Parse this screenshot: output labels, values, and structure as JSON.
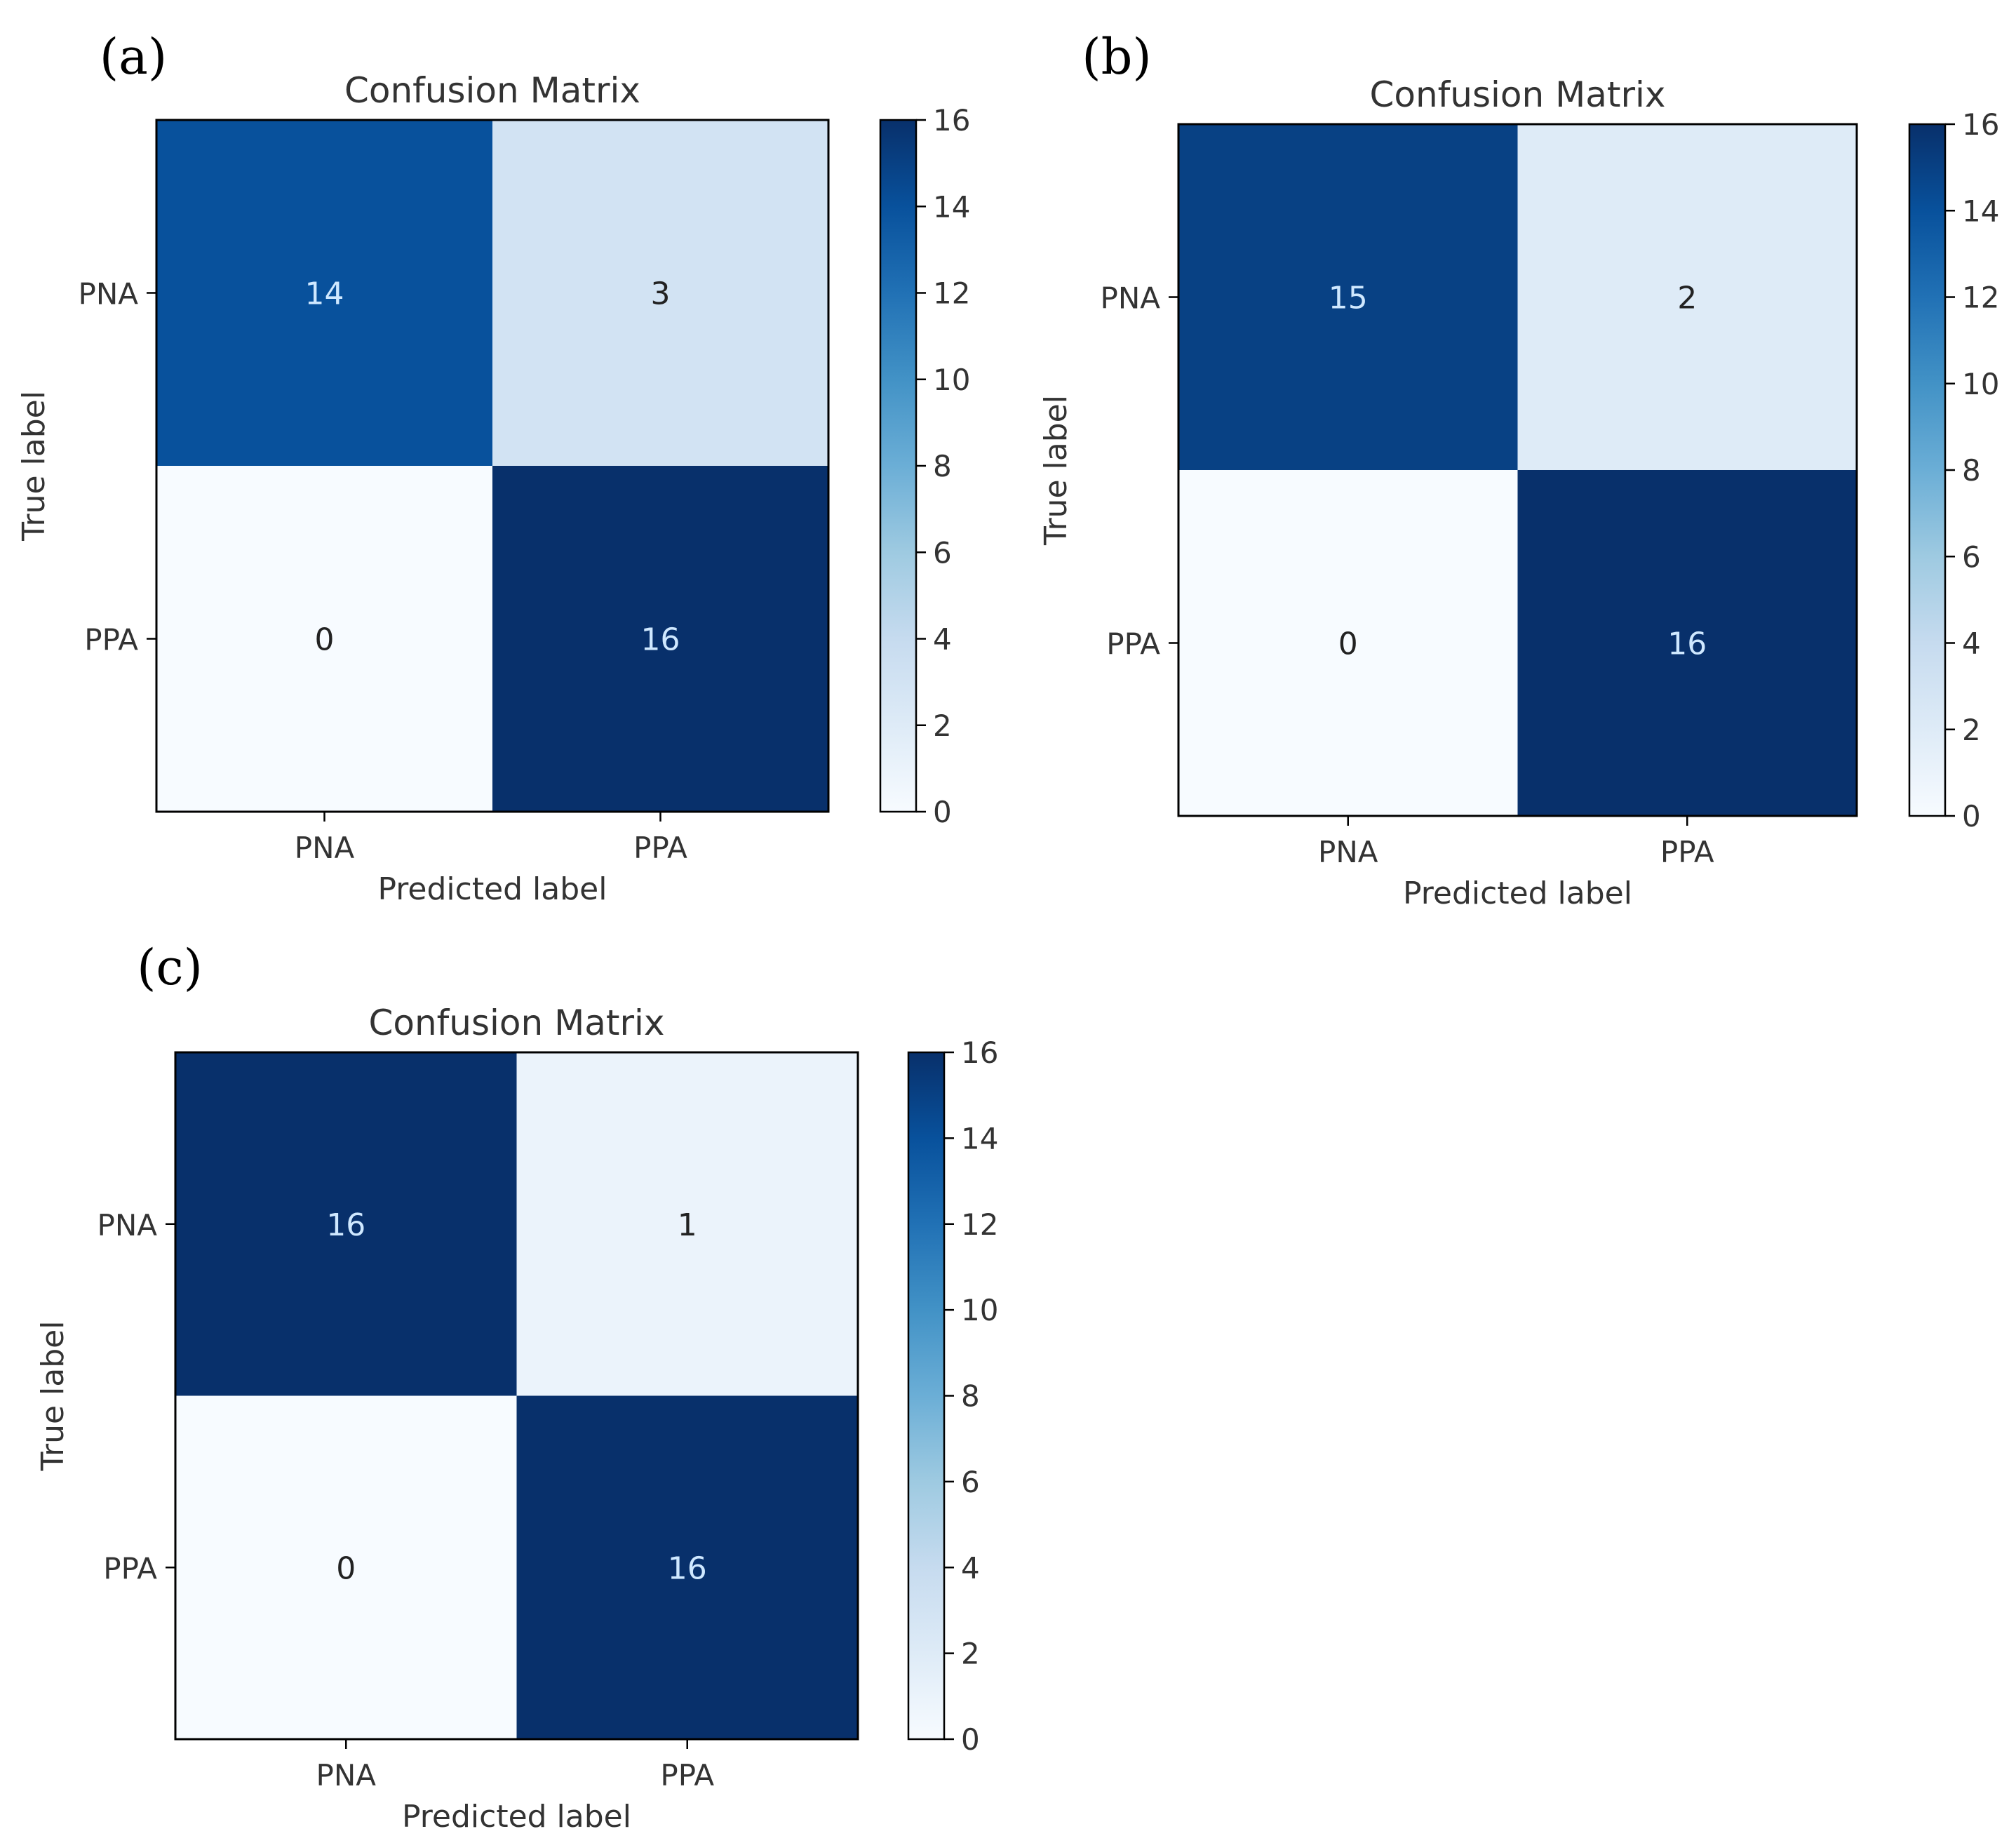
{
  "chart_data": [
    {
      "type": "heatmap",
      "panel_label": "(a)",
      "title": "Confusion Matrix",
      "xlabel": "Predicted label",
      "ylabel": "True label",
      "x_categories": [
        "PNA",
        "PPA"
      ],
      "y_categories": [
        "PNA",
        "PPA"
      ],
      "values": [
        [
          14,
          3
        ],
        [
          0,
          16
        ]
      ],
      "colorbar": {
        "vmin": 0,
        "vmax": 16,
        "ticks": [
          0,
          2,
          4,
          6,
          8,
          10,
          12,
          14,
          16
        ],
        "colormap": "Blues"
      }
    },
    {
      "type": "heatmap",
      "panel_label": "(b)",
      "title": "Confusion Matrix",
      "xlabel": "Predicted label",
      "ylabel": "True label",
      "x_categories": [
        "PNA",
        "PPA"
      ],
      "y_categories": [
        "PNA",
        "PPA"
      ],
      "values": [
        [
          15,
          2
        ],
        [
          0,
          16
        ]
      ],
      "colorbar": {
        "vmin": 0,
        "vmax": 16,
        "ticks": [
          0,
          2,
          4,
          6,
          8,
          10,
          12,
          14,
          16
        ],
        "colormap": "Blues"
      }
    },
    {
      "type": "heatmap",
      "panel_label": "(c)",
      "title": "Confusion Matrix",
      "xlabel": "Predicted label",
      "ylabel": "True label",
      "x_categories": [
        "PNA",
        "PPA"
      ],
      "y_categories": [
        "PNA",
        "PPA"
      ],
      "values": [
        [
          16,
          1
        ],
        [
          0,
          16
        ]
      ],
      "colorbar": {
        "vmin": 0,
        "vmax": 16,
        "ticks": [
          0,
          2,
          4,
          6,
          8,
          10,
          12,
          14,
          16
        ],
        "colormap": "Blues"
      }
    }
  ],
  "colors": {
    "blues": [
      "#f7fbff",
      "#deebf7",
      "#c6dbef",
      "#9ecae1",
      "#6baed6",
      "#4292c6",
      "#2171b5",
      "#08519c",
      "#08306b"
    ],
    "light_text": "#f7fbff",
    "dark_text": "#08306b",
    "axis": "#000000",
    "label_text": "#333333"
  }
}
